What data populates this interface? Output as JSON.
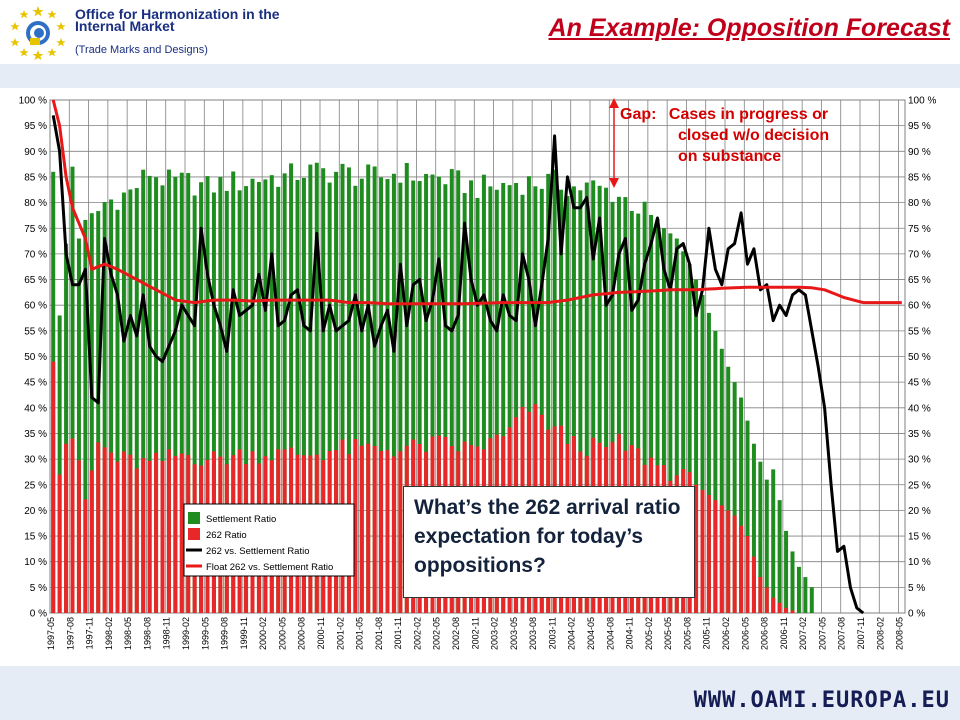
{
  "header": {
    "org_name": "Office for Harmonization in the Internal Market",
    "org_sub": "(Trade Marks and Designs)",
    "title": "An Example: Opposition Forecast"
  },
  "footer": {
    "url": "WWW.OAMI.EUROPA.EU"
  },
  "annotations": {
    "gap_label": "Gap:",
    "gap_line1": "Cases in progress or",
    "gap_line2": "closed w/o decision",
    "gap_line3": "on substance",
    "callout": "What’s the 262 arrival ratio expectation for today’s oppositions?"
  },
  "colors": {
    "settlement": "#1f8c1f",
    "ratio262": "#e82828",
    "line262": "#000000",
    "float262": "#e81818",
    "accent": "#c0001a"
  },
  "chart_data": {
    "type": "bar",
    "y_axis_left": {
      "ylim": [
        0,
        100
      ],
      "tick_step": 5,
      "format": "percent"
    },
    "y_axis_right": {
      "ylim": [
        0,
        100
      ],
      "tick_step": 5,
      "format": "percent"
    },
    "grid": true,
    "legend_position": "bottom-center",
    "x_start": "1997-05",
    "x_labels": [
      "1997-05",
      "1997-08",
      "1997-11",
      "1998-02",
      "1998-05",
      "1998-08",
      "1998-11",
      "1999-02",
      "1999-05",
      "1999-08",
      "1999-11",
      "2000-02",
      "2000-05",
      "2000-08",
      "2000-11",
      "2001-02",
      "2001-05",
      "2001-08",
      "2001-11",
      "2002-02",
      "2002-05",
      "2002-08",
      "2002-11",
      "2003-02",
      "2003-05",
      "2003-08",
      "2003-11",
      "2004-02",
      "2004-05",
      "2004-08",
      "2004-11",
      "2005-02",
      "2005-05",
      "2005-08",
      "2005-11",
      "2006-02",
      "2006-05",
      "2006-08",
      "2006-11",
      "2007-02",
      "2007-05",
      "2007-08",
      "2007-11",
      "2008-02",
      "2008-05"
    ],
    "series": [
      {
        "name": "Settlement Ratio",
        "kind": "bar",
        "anchors": [
          [
            0,
            86
          ],
          [
            1,
            58
          ],
          [
            2,
            72
          ],
          [
            3,
            87
          ],
          [
            4,
            73
          ],
          [
            5,
            75
          ],
          [
            8,
            80
          ],
          [
            12,
            82
          ],
          [
            15,
            86
          ],
          [
            18,
            84
          ],
          [
            21,
            84
          ],
          [
            24,
            83
          ],
          [
            27,
            84
          ],
          [
            30,
            84
          ],
          [
            33,
            85
          ],
          [
            36,
            85
          ],
          [
            39,
            86
          ],
          [
            42,
            86
          ],
          [
            45,
            86
          ],
          [
            48,
            85
          ],
          [
            51,
            85
          ],
          [
            54,
            86
          ],
          [
            57,
            85
          ],
          [
            60,
            85
          ],
          [
            63,
            84
          ],
          [
            66,
            83
          ],
          [
            69,
            83
          ],
          [
            72,
            84
          ],
          [
            75,
            84
          ],
          [
            78,
            84
          ],
          [
            81,
            83
          ],
          [
            84,
            83
          ],
          [
            87,
            82
          ],
          [
            90,
            80
          ],
          [
            93,
            77
          ],
          [
            95,
            75
          ],
          [
            97,
            73
          ],
          [
            99,
            68
          ],
          [
            101,
            62
          ],
          [
            103,
            55
          ],
          [
            105,
            48
          ],
          [
            107,
            42
          ],
          [
            109,
            33
          ],
          [
            111,
            26
          ],
          [
            112,
            28
          ],
          [
            113,
            22
          ],
          [
            114,
            16
          ],
          [
            115,
            12
          ],
          [
            116,
            9
          ],
          [
            117,
            7
          ],
          [
            118,
            5
          ]
        ]
      },
      {
        "name": "262 Ratio",
        "kind": "bar",
        "anchors": [
          [
            0,
            49
          ],
          [
            1,
            27
          ],
          [
            2,
            33
          ],
          [
            3,
            34
          ],
          [
            5,
            22
          ],
          [
            7,
            33
          ],
          [
            10,
            30
          ],
          [
            15,
            29
          ],
          [
            20,
            31
          ],
          [
            25,
            30
          ],
          [
            30,
            31
          ],
          [
            35,
            31
          ],
          [
            40,
            31
          ],
          [
            45,
            32
          ],
          [
            50,
            32
          ],
          [
            55,
            32
          ],
          [
            60,
            33
          ],
          [
            65,
            32
          ],
          [
            70,
            34
          ],
          [
            74,
            40
          ],
          [
            78,
            36
          ],
          [
            81,
            33
          ],
          [
            85,
            32
          ],
          [
            88,
            33
          ],
          [
            91,
            31
          ],
          [
            94,
            29
          ],
          [
            97,
            27
          ],
          [
            100,
            25
          ],
          [
            103,
            22
          ],
          [
            106,
            19
          ],
          [
            108,
            15
          ],
          [
            110,
            7
          ],
          [
            112,
            3
          ],
          [
            114,
            1
          ],
          [
            116,
            0
          ],
          [
            118,
            0
          ]
        ]
      },
      {
        "name": "262 vs. Settlement Ratio",
        "kind": "line",
        "anchors": [
          [
            0,
            97
          ],
          [
            1,
            90
          ],
          [
            2,
            70
          ],
          [
            3,
            64
          ],
          [
            4,
            64
          ],
          [
            5,
            67
          ],
          [
            6,
            42
          ],
          [
            7,
            41
          ],
          [
            8,
            73
          ],
          [
            9,
            66
          ],
          [
            10,
            62
          ],
          [
            11,
            53
          ],
          [
            12,
            58
          ],
          [
            13,
            54
          ],
          [
            14,
            62
          ],
          [
            15,
            52
          ],
          [
            16,
            50
          ],
          [
            17,
            49
          ],
          [
            18,
            52
          ],
          [
            19,
            55
          ],
          [
            20,
            60
          ],
          [
            21,
            58
          ],
          [
            22,
            56
          ],
          [
            23,
            75
          ],
          [
            24,
            66
          ],
          [
            25,
            60
          ],
          [
            26,
            56
          ],
          [
            27,
            51
          ],
          [
            28,
            63
          ],
          [
            29,
            58
          ],
          [
            30,
            59
          ],
          [
            31,
            60
          ],
          [
            32,
            66
          ],
          [
            33,
            59
          ],
          [
            34,
            70
          ],
          [
            35,
            56
          ],
          [
            36,
            57
          ],
          [
            37,
            62
          ],
          [
            38,
            63
          ],
          [
            39,
            56
          ],
          [
            40,
            55
          ],
          [
            41,
            74
          ],
          [
            42,
            55
          ],
          [
            43,
            60
          ],
          [
            44,
            55
          ],
          [
            45,
            56
          ],
          [
            46,
            57
          ],
          [
            47,
            62
          ],
          [
            48,
            55
          ],
          [
            49,
            60
          ],
          [
            50,
            52
          ],
          [
            51,
            56
          ],
          [
            52,
            59
          ],
          [
            53,
            51
          ],
          [
            54,
            68
          ],
          [
            55,
            56
          ],
          [
            56,
            64
          ],
          [
            57,
            65
          ],
          [
            58,
            57
          ],
          [
            59,
            61
          ],
          [
            60,
            69
          ],
          [
            61,
            56
          ],
          [
            62,
            55
          ],
          [
            63,
            58
          ],
          [
            64,
            76
          ],
          [
            65,
            65
          ],
          [
            66,
            60
          ],
          [
            67,
            62
          ],
          [
            68,
            57
          ],
          [
            69,
            55
          ],
          [
            70,
            62
          ],
          [
            71,
            58
          ],
          [
            72,
            57
          ],
          [
            73,
            70
          ],
          [
            74,
            65
          ],
          [
            75,
            56
          ],
          [
            76,
            64
          ],
          [
            77,
            73
          ],
          [
            78,
            93
          ],
          [
            79,
            70
          ],
          [
            80,
            85
          ],
          [
            81,
            79
          ],
          [
            82,
            79
          ],
          [
            83,
            81
          ],
          [
            84,
            69
          ],
          [
            85,
            77
          ],
          [
            86,
            60
          ],
          [
            87,
            62
          ],
          [
            88,
            70
          ],
          [
            89,
            73
          ],
          [
            90,
            59
          ],
          [
            91,
            61
          ],
          [
            92,
            68
          ],
          [
            93,
            72
          ],
          [
            94,
            77
          ],
          [
            95,
            67
          ],
          [
            96,
            63
          ],
          [
            97,
            71
          ],
          [
            98,
            72
          ],
          [
            99,
            68
          ],
          [
            100,
            58
          ],
          [
            101,
            63
          ],
          [
            102,
            75
          ],
          [
            103,
            67
          ],
          [
            104,
            64
          ],
          [
            105,
            71
          ],
          [
            106,
            72
          ],
          [
            107,
            78
          ],
          [
            108,
            68
          ],
          [
            109,
            71
          ],
          [
            110,
            63
          ],
          [
            111,
            64
          ],
          [
            112,
            57
          ],
          [
            113,
            60
          ],
          [
            114,
            58
          ],
          [
            115,
            62
          ],
          [
            116,
            63
          ],
          [
            117,
            62
          ],
          [
            118,
            55
          ],
          [
            119,
            48
          ],
          [
            120,
            40
          ],
          [
            121,
            25
          ],
          [
            122,
            12
          ],
          [
            123,
            13
          ],
          [
            124,
            5
          ],
          [
            125,
            1
          ],
          [
            126,
            0
          ]
        ]
      },
      {
        "name": "Float 262 vs. Settlement Ratio",
        "kind": "line",
        "anchors": [
          [
            0,
            100
          ],
          [
            1,
            95
          ],
          [
            2,
            85
          ],
          [
            3,
            79
          ],
          [
            4,
            76
          ],
          [
            5,
            73
          ],
          [
            6,
            67
          ],
          [
            8,
            68
          ],
          [
            10,
            67
          ],
          [
            13,
            65
          ],
          [
            16,
            63
          ],
          [
            19,
            61
          ],
          [
            22,
            60.5
          ],
          [
            25,
            61
          ],
          [
            28,
            61
          ],
          [
            31,
            60.8
          ],
          [
            34,
            61
          ],
          [
            37,
            61
          ],
          [
            40,
            61
          ],
          [
            43,
            61
          ],
          [
            46,
            60.5
          ],
          [
            49,
            60.5
          ],
          [
            52,
            60.3
          ],
          [
            55,
            60.3
          ],
          [
            58,
            60.3
          ],
          [
            61,
            60.3
          ],
          [
            64,
            60.3
          ],
          [
            67,
            60.4
          ],
          [
            70,
            60.5
          ],
          [
            74,
            60.5
          ],
          [
            77,
            60.5
          ],
          [
            80,
            61
          ],
          [
            84,
            62
          ],
          [
            88,
            62.5
          ],
          [
            92,
            62.7
          ],
          [
            96,
            63
          ],
          [
            100,
            63
          ],
          [
            104,
            63.3
          ],
          [
            108,
            63.5
          ],
          [
            112,
            63.5
          ],
          [
            116,
            63.5
          ],
          [
            118,
            63.4
          ],
          [
            120,
            63
          ],
          [
            123,
            61.5
          ],
          [
            126,
            60.5
          ],
          [
            132,
            60.5
          ]
        ]
      }
    ]
  }
}
